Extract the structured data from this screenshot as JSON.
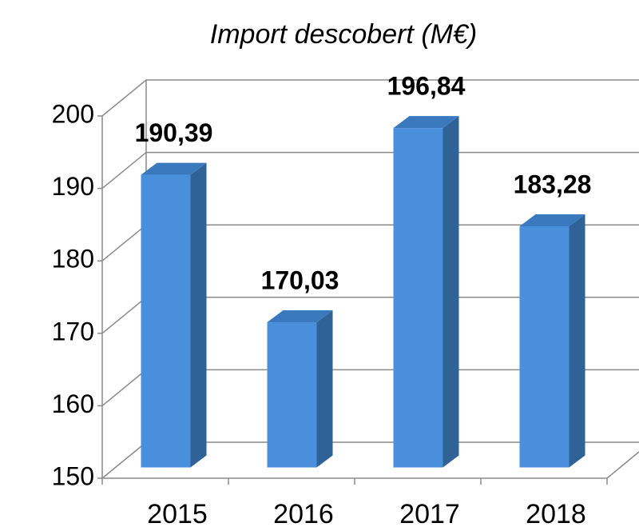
{
  "chart_data": {
    "type": "bar3d",
    "title": "Import descobert (M€)",
    "categories": [
      "2015",
      "2016",
      "2017",
      "2018"
    ],
    "values": [
      190.39,
      170.03,
      196.84,
      183.28
    ],
    "value_labels": [
      "190,39",
      "170,03",
      "196,84",
      "183,28"
    ],
    "color": "#4a8fdb",
    "ylim": [
      150,
      200
    ],
    "yticks": [
      150,
      160,
      170,
      180,
      190,
      200
    ],
    "grid": true
  }
}
